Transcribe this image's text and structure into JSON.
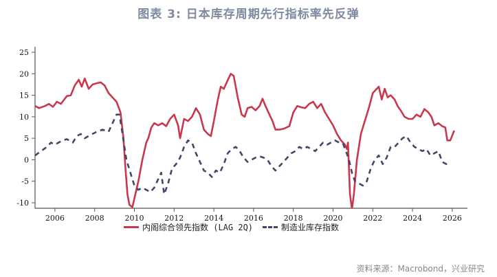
{
  "title": "图表 3:  日本库存周期先行指标率先反弹",
  "source": "资料来源：Macrobond，兴业研究",
  "legend": {
    "series1": "内阁综合领先指数 (LAG 2Q)",
    "series2": "制造业库存指数"
  },
  "colors": {
    "series1": "#c8374b",
    "series2": "#3f4866",
    "title": "#7d8aa0"
  },
  "chart_data": {
    "type": "line",
    "title": "图表 3:  日本库存周期先行指标率先反弹",
    "xlabel": "",
    "ylabel": "",
    "xlim": [
      2005,
      2026.6
    ],
    "ylim": [
      -10,
      25
    ],
    "x_ticks": [
      "2006",
      "2008",
      "2010",
      "2012",
      "2014",
      "2016",
      "2018",
      "2020",
      "2022",
      "2024",
      "2026"
    ],
    "y_ticks": [
      "25",
      "20",
      "15",
      "10",
      "5",
      "0",
      "-5",
      "-10"
    ],
    "grid": false,
    "legend_position": "bottom",
    "series": [
      {
        "name": "内阁综合领先指数 (LAG 2Q)",
        "style": "solid",
        "color": "#c8374b",
        "points": [
          [
            2005.0,
            12.5
          ],
          [
            2005.2,
            12.0
          ],
          [
            2005.5,
            12.5
          ],
          [
            2005.7,
            13.0
          ],
          [
            2005.9,
            12.3
          ],
          [
            2006.1,
            13.5
          ],
          [
            2006.3,
            13.0
          ],
          [
            2006.6,
            14.8
          ],
          [
            2006.8,
            15.0
          ],
          [
            2007.0,
            17.3
          ],
          [
            2007.2,
            18.6
          ],
          [
            2007.35,
            17.0
          ],
          [
            2007.5,
            18.9
          ],
          [
            2007.7,
            16.5
          ],
          [
            2007.9,
            17.5
          ],
          [
            2008.1,
            17.8
          ],
          [
            2008.3,
            18.0
          ],
          [
            2008.5,
            17.3
          ],
          [
            2008.7,
            15.5
          ],
          [
            2008.9,
            14.5
          ],
          [
            2009.1,
            13.5
          ],
          [
            2009.3,
            11.0
          ],
          [
            2009.45,
            5.0
          ],
          [
            2009.55,
            -2.0
          ],
          [
            2009.65,
            -8.0
          ],
          [
            2009.75,
            -10.5
          ],
          [
            2009.9,
            -11.0
          ],
          [
            2010.0,
            -9.0
          ],
          [
            2010.2,
            -5.0
          ],
          [
            2010.4,
            0.0
          ],
          [
            2010.6,
            4.0
          ],
          [
            2010.7,
            5.0
          ],
          [
            2010.85,
            7.5
          ],
          [
            2011.0,
            8.5
          ],
          [
            2011.2,
            8.0
          ],
          [
            2011.4,
            8.5
          ],
          [
            2011.6,
            7.8
          ],
          [
            2011.8,
            9.5
          ],
          [
            2012.0,
            10.5
          ],
          [
            2012.2,
            8.0
          ],
          [
            2012.3,
            5.0
          ],
          [
            2012.5,
            9.5
          ],
          [
            2012.7,
            9.0
          ],
          [
            2012.9,
            10.0
          ],
          [
            2013.1,
            12.0
          ],
          [
            2013.3,
            10.5
          ],
          [
            2013.5,
            7.0
          ],
          [
            2013.7,
            6.0
          ],
          [
            2013.85,
            5.5
          ],
          [
            2014.0,
            9.0
          ],
          [
            2014.2,
            14.0
          ],
          [
            2014.35,
            17.0
          ],
          [
            2014.5,
            16.5
          ],
          [
            2014.7,
            18.5
          ],
          [
            2014.85,
            20.0
          ],
          [
            2015.0,
            19.5
          ],
          [
            2015.2,
            14.5
          ],
          [
            2015.4,
            10.5
          ],
          [
            2015.55,
            10.0
          ],
          [
            2015.7,
            12.0
          ],
          [
            2015.9,
            12.3
          ],
          [
            2016.1,
            11.5
          ],
          [
            2016.3,
            12.5
          ],
          [
            2016.45,
            14.2
          ],
          [
            2016.6,
            12.5
          ],
          [
            2016.8,
            10.5
          ],
          [
            2016.95,
            9.0
          ],
          [
            2017.1,
            7.0
          ],
          [
            2017.3,
            7.0
          ],
          [
            2017.5,
            7.2
          ],
          [
            2017.8,
            7.8
          ],
          [
            2018.0,
            11.0
          ],
          [
            2018.2,
            12.5
          ],
          [
            2018.4,
            12.2
          ],
          [
            2018.6,
            12.0
          ],
          [
            2018.8,
            13.0
          ],
          [
            2019.0,
            13.5
          ],
          [
            2019.2,
            12.0
          ],
          [
            2019.4,
            13.0
          ],
          [
            2019.6,
            11.0
          ],
          [
            2019.8,
            9.5
          ],
          [
            2020.0,
            8.0
          ],
          [
            2020.2,
            6.0
          ],
          [
            2020.4,
            4.5
          ],
          [
            2020.6,
            3.5
          ],
          [
            2020.7,
            2.5
          ],
          [
            2020.75,
            4.0
          ],
          [
            2020.85,
            -8.0
          ],
          [
            2020.95,
            -11.5
          ],
          [
            2021.05,
            -8.0
          ],
          [
            2021.2,
            0.0
          ],
          [
            2021.4,
            6.0
          ],
          [
            2021.6,
            9.0
          ],
          [
            2021.8,
            12.0
          ],
          [
            2022.0,
            15.5
          ],
          [
            2022.2,
            16.5
          ],
          [
            2022.3,
            17.0
          ],
          [
            2022.45,
            14.0
          ],
          [
            2022.6,
            16.5
          ],
          [
            2022.75,
            14.5
          ],
          [
            2022.9,
            15.0
          ],
          [
            2023.1,
            14.0
          ],
          [
            2023.25,
            12.5
          ],
          [
            2023.4,
            11.5
          ],
          [
            2023.6,
            10.0
          ],
          [
            2023.8,
            9.5
          ],
          [
            2024.0,
            9.5
          ],
          [
            2024.2,
            10.5
          ],
          [
            2024.4,
            10.0
          ],
          [
            2024.6,
            11.8
          ],
          [
            2024.8,
            11.0
          ],
          [
            2024.95,
            10.0
          ],
          [
            2025.1,
            8.0
          ],
          [
            2025.3,
            8.5
          ],
          [
            2025.5,
            7.8
          ],
          [
            2025.65,
            7.5
          ],
          [
            2025.75,
            4.5
          ],
          [
            2025.9,
            4.5
          ],
          [
            2026.1,
            6.8
          ]
        ]
      },
      {
        "name": "制造业库存指数",
        "style": "dashed",
        "color": "#3f4866",
        "points": [
          [
            2005.0,
            1.0
          ],
          [
            2005.3,
            2.0
          ],
          [
            2005.6,
            3.0
          ],
          [
            2005.8,
            4.0
          ],
          [
            2006.0,
            3.5
          ],
          [
            2006.3,
            4.3
          ],
          [
            2006.6,
            4.8
          ],
          [
            2006.9,
            4.0
          ],
          [
            2007.1,
            5.5
          ],
          [
            2007.3,
            6.0
          ],
          [
            2007.5,
            5.0
          ],
          [
            2007.8,
            5.8
          ],
          [
            2008.1,
            6.5
          ],
          [
            2008.4,
            7.0
          ],
          [
            2008.7,
            6.5
          ],
          [
            2008.9,
            8.5
          ],
          [
            2009.1,
            10.5
          ],
          [
            2009.25,
            10.5
          ],
          [
            2009.4,
            6.0
          ],
          [
            2009.6,
            0.0
          ],
          [
            2009.8,
            -3.0
          ],
          [
            2010.0,
            -6.0
          ],
          [
            2010.2,
            -7.0
          ],
          [
            2010.4,
            -6.5
          ],
          [
            2010.6,
            -7.0
          ],
          [
            2010.8,
            -7.5
          ],
          [
            2011.0,
            -6.5
          ],
          [
            2011.2,
            -4.5
          ],
          [
            2011.35,
            -3.0
          ],
          [
            2011.5,
            -8.0
          ],
          [
            2011.7,
            -5.5
          ],
          [
            2011.9,
            -2.0
          ],
          [
            2012.1,
            -1.0
          ],
          [
            2012.3,
            0.5
          ],
          [
            2012.5,
            3.0
          ],
          [
            2012.7,
            4.5
          ],
          [
            2012.9,
            4.0
          ],
          [
            2013.1,
            1.5
          ],
          [
            2013.3,
            -0.5
          ],
          [
            2013.5,
            -2.5
          ],
          [
            2013.7,
            -3.0
          ],
          [
            2013.9,
            -4.0
          ],
          [
            2014.1,
            -2.5
          ],
          [
            2014.3,
            -3.0
          ],
          [
            2014.5,
            -1.0
          ],
          [
            2014.7,
            1.5
          ],
          [
            2014.9,
            2.5
          ],
          [
            2015.1,
            3.0
          ],
          [
            2015.3,
            2.0
          ],
          [
            2015.5,
            0.5
          ],
          [
            2015.7,
            -0.5
          ],
          [
            2015.9,
            0.0
          ],
          [
            2016.1,
            0.5
          ],
          [
            2016.3,
            0.8
          ],
          [
            2016.5,
            0.5
          ],
          [
            2016.7,
            0.0
          ],
          [
            2016.9,
            -1.5
          ],
          [
            2017.1,
            -2.5
          ],
          [
            2017.3,
            -1.5
          ],
          [
            2017.5,
            -0.5
          ],
          [
            2017.7,
            0.5
          ],
          [
            2017.9,
            1.5
          ],
          [
            2018.1,
            2.0
          ],
          [
            2018.3,
            3.0
          ],
          [
            2018.5,
            2.5
          ],
          [
            2018.7,
            3.0
          ],
          [
            2018.9,
            2.5
          ],
          [
            2019.1,
            2.0
          ],
          [
            2019.3,
            3.0
          ],
          [
            2019.5,
            4.0
          ],
          [
            2019.7,
            3.5
          ],
          [
            2019.9,
            4.0
          ],
          [
            2020.1,
            4.5
          ],
          [
            2020.3,
            4.0
          ],
          [
            2020.5,
            3.8
          ],
          [
            2020.65,
            2.0
          ],
          [
            2020.8,
            0.0
          ],
          [
            2020.95,
            -3.0
          ],
          [
            2021.1,
            -5.0
          ],
          [
            2021.3,
            -5.5
          ],
          [
            2021.5,
            -6.0
          ],
          [
            2021.7,
            -5.0
          ],
          [
            2021.9,
            -2.0
          ],
          [
            2022.1,
            0.0
          ],
          [
            2022.3,
            1.0
          ],
          [
            2022.5,
            -1.0
          ],
          [
            2022.7,
            0.5
          ],
          [
            2022.9,
            3.0
          ],
          [
            2023.1,
            3.0
          ],
          [
            2023.3,
            4.0
          ],
          [
            2023.5,
            5.0
          ],
          [
            2023.7,
            5.5
          ],
          [
            2023.9,
            4.0
          ],
          [
            2024.1,
            3.0
          ],
          [
            2024.3,
            2.5
          ],
          [
            2024.5,
            2.0
          ],
          [
            2024.7,
            2.5
          ],
          [
            2024.9,
            1.0
          ],
          [
            2025.1,
            1.5
          ],
          [
            2025.3,
            2.0
          ],
          [
            2025.5,
            -0.5
          ],
          [
            2025.7,
            -1.0
          ],
          [
            2025.85,
            -0.5
          ]
        ]
      }
    ]
  }
}
